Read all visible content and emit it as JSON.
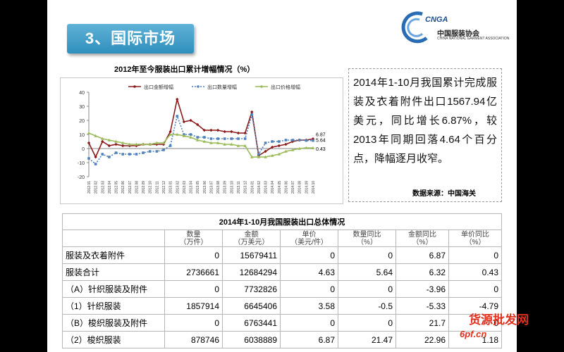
{
  "slide_title": "3、国际市场",
  "logo": {
    "abbr": "CNGA",
    "name": "中国服装协会",
    "en": "CHINA NATIONAL GARMENT ASSOCIATION"
  },
  "chart": {
    "title": "2012年至今服装出口累计增幅情况（%）"
  },
  "chart_data": {
    "type": "line",
    "title": "2012年至今服装出口累计增幅情况（%）",
    "ylim": [
      -20,
      40
    ],
    "yticks": [
      -20,
      -10,
      0,
      10,
      20,
      30,
      40
    ],
    "grid": false,
    "legend": "top",
    "categories": [
      "2012.01",
      "2012.02",
      "2012.03",
      "2012.04",
      "2012.05",
      "2012.06",
      "2012.07",
      "2012.08",
      "2012.09",
      "2012.10",
      "2012.11",
      "2012.12",
      "2013.01",
      "2013.02",
      "2013.03",
      "2013.04",
      "2013.05",
      "2013.06",
      "2013.07",
      "2013.08",
      "2013.09",
      "2013.10",
      "2013.11",
      "2013.12",
      "2014.01",
      "2014.02",
      "2014.03",
      "2014.04",
      "2014.05",
      "2014.06",
      "2014.07",
      "2014.08",
      "2014.09",
      "2014.10"
    ],
    "series": [
      {
        "name": "出口金额增幅",
        "color": "#8b1a1a",
        "values": [
          4,
          -6,
          5,
          2,
          3,
          2,
          2,
          2,
          3,
          3,
          3,
          3,
          12,
          35,
          19,
          20,
          17,
          13,
          13,
          13,
          12,
          12,
          11,
          11,
          26,
          -5,
          -2,
          1,
          2,
          3,
          5,
          6,
          6,
          6.87
        ]
      },
      {
        "name": "出口数量增幅",
        "color": "#4f81bd",
        "values": [
          -7,
          -11,
          -4,
          -6,
          -3,
          -4,
          -4,
          -4,
          -3,
          -2,
          -2,
          -1,
          2,
          23,
          10,
          10,
          8,
          8,
          7,
          7,
          7,
          7,
          7,
          7,
          24,
          -4,
          4,
          5,
          5,
          6,
          6,
          6,
          5.7,
          5.64
        ]
      },
      {
        "name": "出口价格增幅",
        "color": "#9bbb59",
        "values": [
          11,
          9,
          7,
          6,
          5,
          4,
          3,
          3,
          3,
          3,
          4,
          4,
          10,
          10,
          9,
          8,
          6,
          5,
          4,
          4,
          3,
          3,
          2,
          2,
          -6,
          -6,
          -6,
          -5,
          -4,
          -2,
          -1,
          0,
          0.5,
          0.43
        ]
      }
    ],
    "end_labels": [
      "6.87",
      "5.64",
      "0.43"
    ]
  },
  "description": {
    "text": "2014年1-10月我国累计完成服装及衣着附件出口1567.94亿美元，同比增长6.87%，较2013年同期回落4.64个百分点，降幅逐月收窄。",
    "source": "数据来源：中国海关"
  },
  "table": {
    "title": "2014年1-10月我国服装出口总体情况",
    "headers": [
      "",
      "数量\n（万件）",
      "金额\n（万美元）",
      "单价\n（美元/件）",
      "数量同比\n（%）",
      "金额同比\n（%）",
      "单价同比\n（%）"
    ],
    "rows": [
      [
        "服装及衣着附件",
        "0",
        "15679411",
        "0",
        "0",
        "6.87",
        "0"
      ],
      [
        "服装合计",
        "2736661",
        "12684294",
        "4.63",
        "5.64",
        "6.32",
        "0.43"
      ],
      [
        "（A）针织服装及附件",
        "0",
        "7732826",
        "0",
        "0",
        "-3.96",
        "0"
      ],
      [
        "（1）针织服装",
        "1857914",
        "6645406",
        "3.58",
        "-0.5",
        "-5.33",
        "-4.79"
      ],
      [
        "（B）梭织服装及附件",
        "0",
        "6763441",
        "0",
        "0",
        "21.7",
        "0"
      ],
      [
        "（2）梭织服装",
        "878746",
        "6038889",
        "6.87",
        "21.47",
        "22.96",
        "1.18"
      ]
    ]
  },
  "watermark": {
    "line1": "货源批发网",
    "line2": "6pf.cn"
  }
}
